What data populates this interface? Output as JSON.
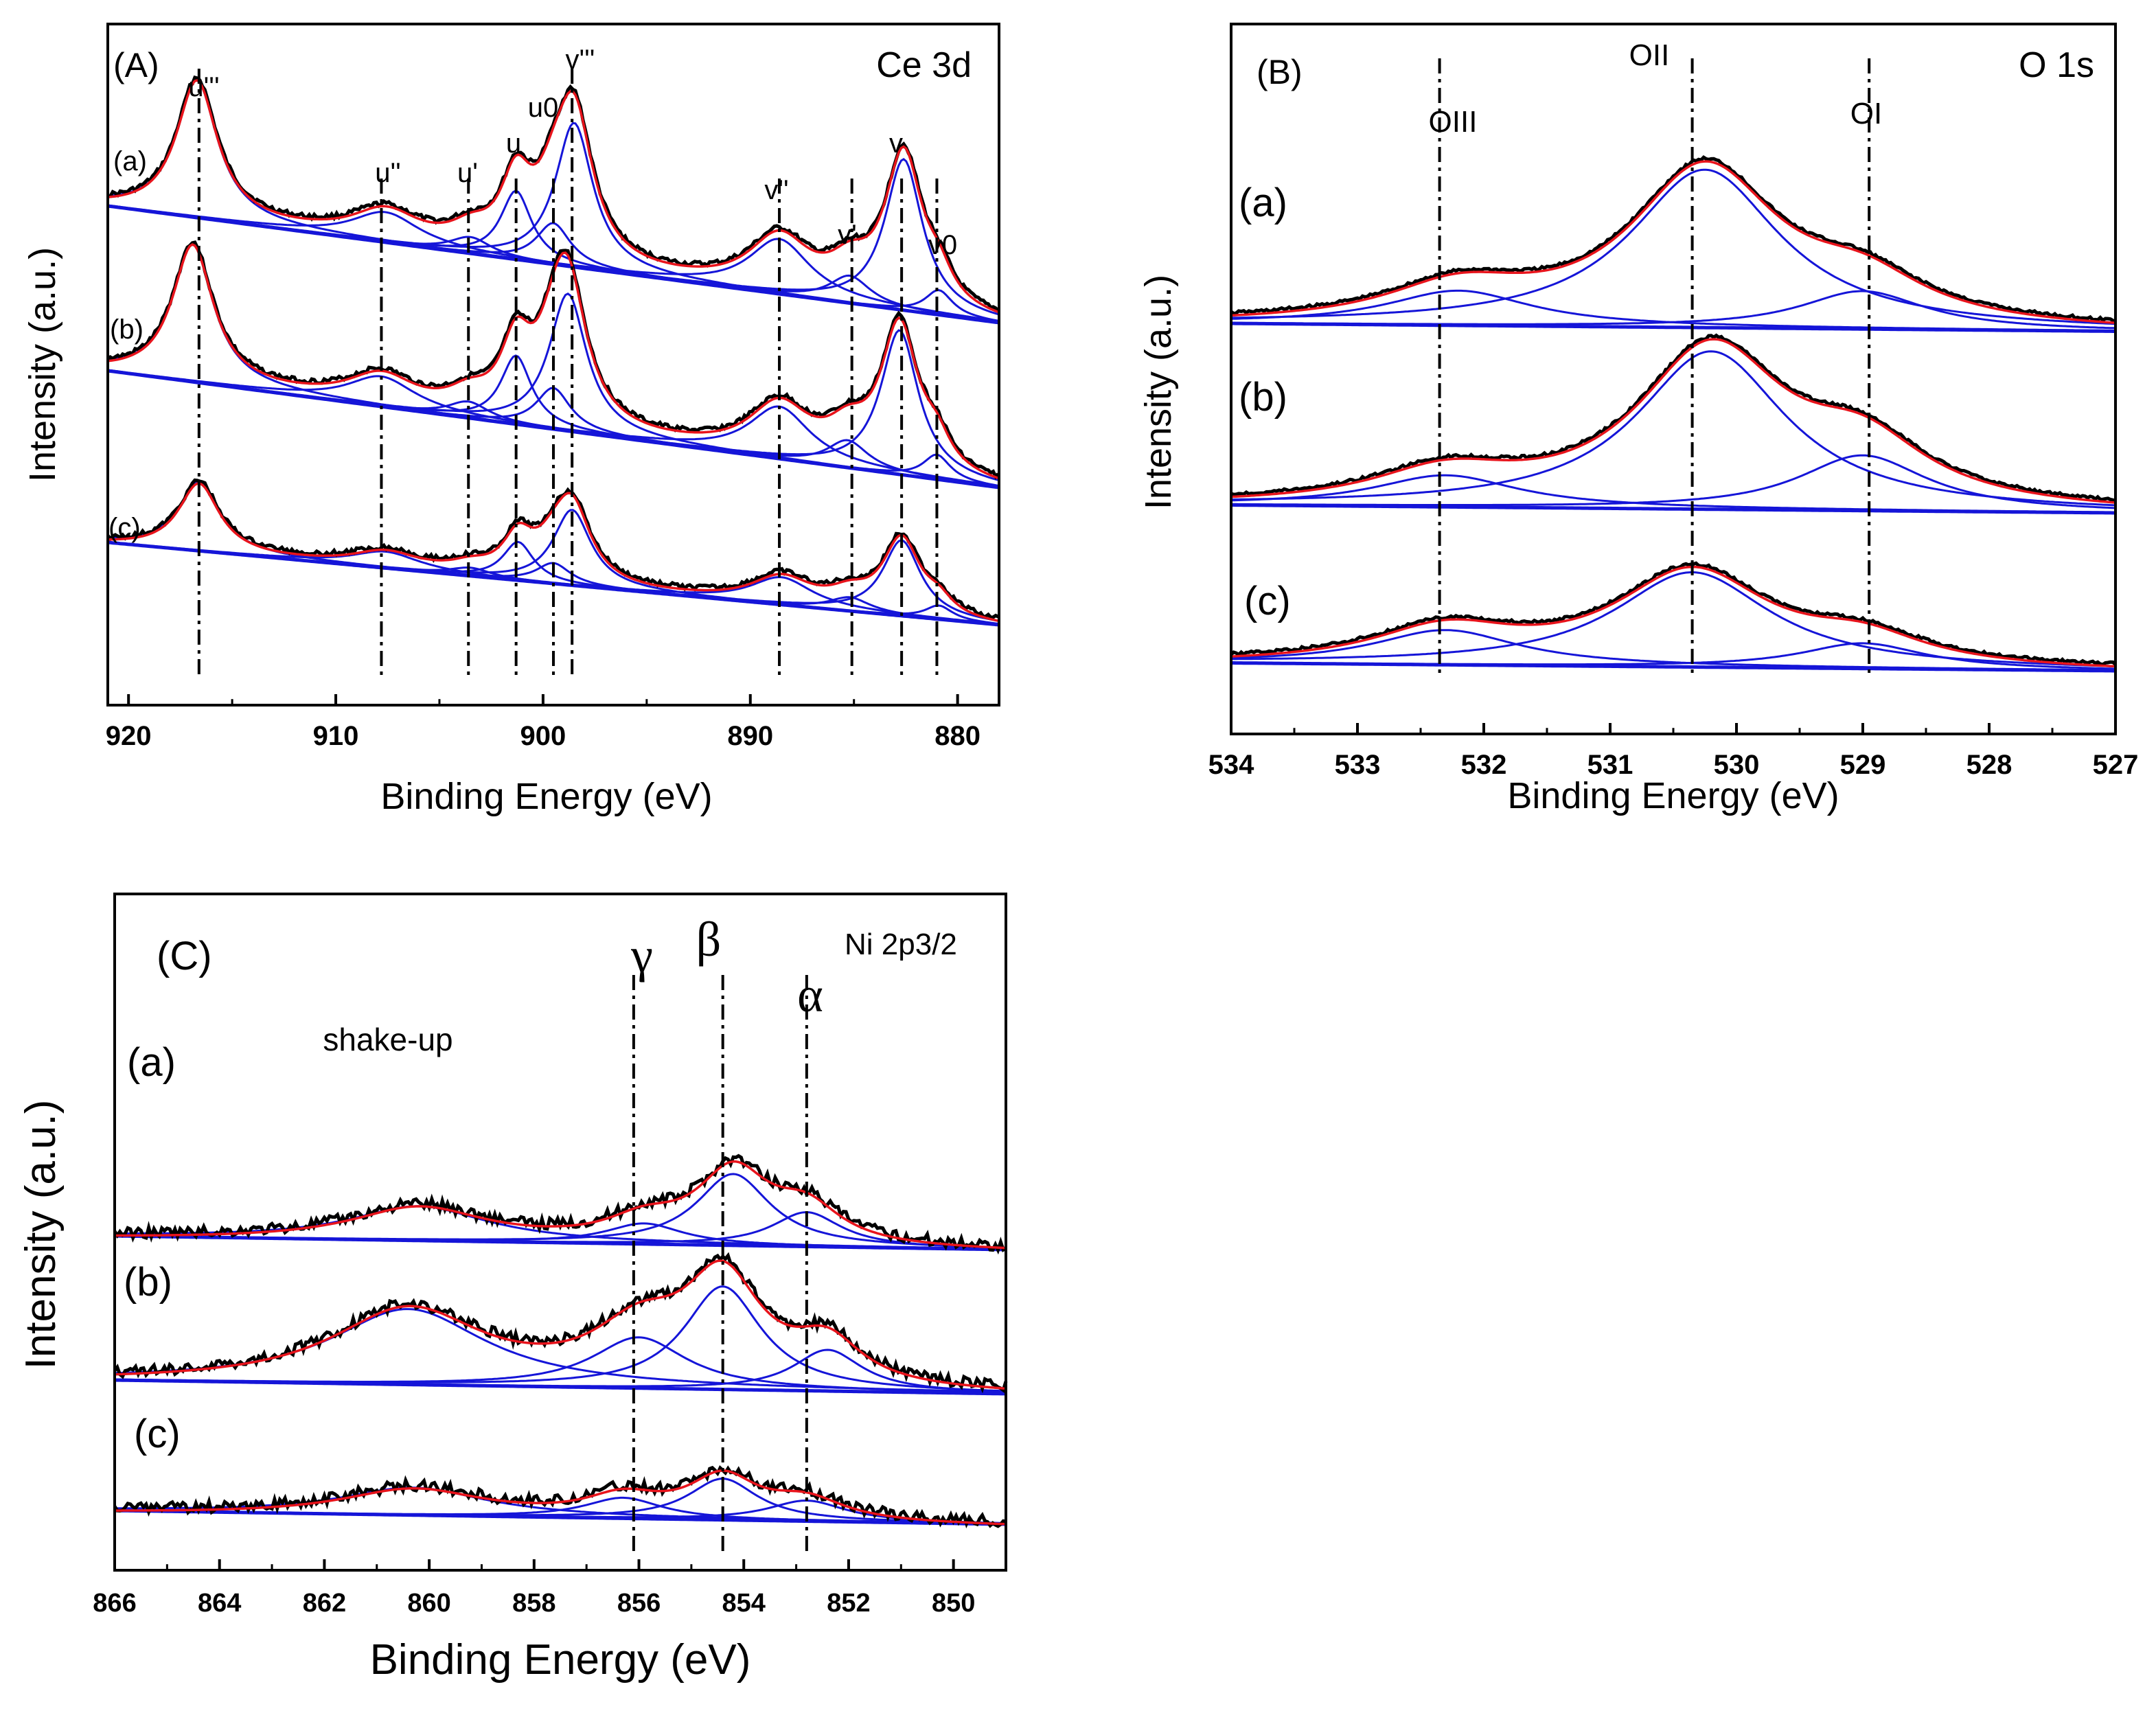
{
  "figure": {
    "panels": [
      {
        "id": "A",
        "panel_label": "(A)",
        "title": "Ce 3d",
        "xlabel": "Binding Energy (eV)",
        "ylabel": "Intensity (a.u.)",
        "x_ticks": [
          "920",
          "910",
          "900",
          "890",
          "880"
        ],
        "sample_labels": [
          "(a)",
          "(b)",
          "(c)"
        ],
        "peak_labels": [
          "u'''",
          "u''",
          "u'",
          "u",
          "u0",
          "v'''",
          "v''",
          "v'",
          "v",
          "v0"
        ]
      },
      {
        "id": "B",
        "panel_label": "(B)",
        "title": "O 1s",
        "xlabel": "Binding Energy (eV)",
        "ylabel": "Intensity (a.u.)",
        "x_ticks": [
          "534",
          "533",
          "532",
          "531",
          "530",
          "529",
          "528",
          "527"
        ],
        "sample_labels": [
          "(a)",
          "(b)",
          "(c)"
        ],
        "peak_labels": [
          "OIII",
          "OII",
          "OI"
        ]
      },
      {
        "id": "C",
        "panel_label": "(C)",
        "title": "Ni 2p3/2",
        "xlabel": "Binding Energy (eV)",
        "ylabel": "Intensity (a.u.)",
        "x_ticks": [
          "866",
          "864",
          "862",
          "860",
          "858",
          "856",
          "854",
          "852",
          "850"
        ],
        "sample_labels": [
          "(a)",
          "(b)",
          "(c)"
        ],
        "peak_labels": [
          "shake-up",
          "γ",
          "β",
          "α"
        ]
      }
    ]
  },
  "colors": {
    "raw": "#000000",
    "fit": "#e8141c",
    "components": "#1515d8",
    "guide": "#000000"
  },
  "chart_data": [
    {
      "type": "line",
      "panel": "A",
      "title": "Ce 3d",
      "xlabel": "Binding Energy (eV)",
      "ylabel": "Intensity (a.u.)",
      "xlim": [
        921,
        878
      ],
      "x_reversed": true,
      "series": [
        {
          "name": "(a)",
          "offset": 2.5,
          "bg_left": 0.85,
          "bg_right": 0.0,
          "peaks": [
            {
              "c": 916.7,
              "w": 1.2,
              "h": 1.0
            },
            {
              "c": 907.6,
              "w": 2.0,
              "h": 0.22
            },
            {
              "c": 903.5,
              "w": 1.2,
              "h": 0.12
            },
            {
              "c": 901.3,
              "w": 0.9,
              "h": 0.5
            },
            {
              "c": 899.5,
              "w": 1.0,
              "h": 0.3
            },
            {
              "c": 898.5,
              "w": 1.1,
              "h": 1.05
            },
            {
              "c": 888.6,
              "w": 1.8,
              "h": 0.4
            },
            {
              "c": 885.2,
              "w": 1.2,
              "h": 0.2
            },
            {
              "c": 882.6,
              "w": 1.1,
              "h": 1.1
            },
            {
              "c": 880.9,
              "w": 0.8,
              "h": 0.18
            }
          ]
        },
        {
          "name": "(b)",
          "offset": 1.3,
          "bg_left": 0.85,
          "bg_right": 0.0,
          "peaks": [
            {
              "c": 916.9,
              "w": 1.2,
              "h": 1.0
            },
            {
              "c": 907.8,
              "w": 2.0,
              "h": 0.22
            },
            {
              "c": 903.6,
              "w": 1.2,
              "h": 0.12
            },
            {
              "c": 901.3,
              "w": 0.9,
              "h": 0.5
            },
            {
              "c": 899.5,
              "w": 1.0,
              "h": 0.3
            },
            {
              "c": 898.8,
              "w": 1.1,
              "h": 1.0
            },
            {
              "c": 888.6,
              "w": 1.8,
              "h": 0.38
            },
            {
              "c": 885.3,
              "w": 1.2,
              "h": 0.2
            },
            {
              "c": 882.8,
              "w": 1.1,
              "h": 1.05
            },
            {
              "c": 881.0,
              "w": 0.8,
              "h": 0.18
            }
          ]
        },
        {
          "name": "(c)",
          "offset": 0.3,
          "bg_left": 0.6,
          "bg_right": 0.0,
          "peaks": [
            {
              "c": 916.6,
              "w": 1.2,
              "h": 0.5
            },
            {
              "c": 907.6,
              "w": 2.0,
              "h": 0.12
            },
            {
              "c": 903.5,
              "w": 1.2,
              "h": 0.06
            },
            {
              "c": 901.2,
              "w": 0.9,
              "h": 0.28
            },
            {
              "c": 899.5,
              "w": 1.0,
              "h": 0.15
            },
            {
              "c": 898.6,
              "w": 1.1,
              "h": 0.55
            },
            {
              "c": 888.5,
              "w": 1.8,
              "h": 0.2
            },
            {
              "c": 885.2,
              "w": 1.2,
              "h": 0.1
            },
            {
              "c": 882.7,
              "w": 1.1,
              "h": 0.55
            },
            {
              "c": 880.9,
              "w": 0.8,
              "h": 0.1
            }
          ]
        }
      ],
      "reference_lines": [
        916.6,
        907.8,
        903.6,
        901.3,
        899.5,
        898.6,
        888.6,
        885.1,
        882.7,
        881.0
      ]
    },
    {
      "type": "line",
      "panel": "B",
      "title": "O 1s",
      "xlabel": "Binding Energy (eV)",
      "ylabel": "Intensity (a.u.)",
      "xlim": [
        534,
        527
      ],
      "x_reversed": true,
      "series": [
        {
          "name": "(a)",
          "offset": 2.25,
          "bg_left": 0.05,
          "bg_right": 0.0,
          "peaks": [
            {
              "c": 532.2,
              "w": 0.7,
              "h": 0.22
            },
            {
              "c": 530.25,
              "w": 0.72,
              "h": 1.0
            },
            {
              "c": 529.0,
              "w": 0.6,
              "h": 0.24
            }
          ]
        },
        {
          "name": "(b)",
          "offset": 1.1,
          "bg_left": 0.05,
          "bg_right": 0.0,
          "peaks": [
            {
              "c": 532.3,
              "w": 0.7,
              "h": 0.2
            },
            {
              "c": 530.2,
              "w": 0.72,
              "h": 1.0
            },
            {
              "c": 529.0,
              "w": 0.62,
              "h": 0.35
            }
          ]
        },
        {
          "name": "(c)",
          "offset": 0.1,
          "bg_left": 0.05,
          "bg_right": 0.0,
          "peaks": [
            {
              "c": 532.3,
              "w": 0.7,
              "h": 0.22
            },
            {
              "c": 530.35,
              "w": 0.75,
              "h": 0.6
            },
            {
              "c": 529.0,
              "w": 0.6,
              "h": 0.16
            }
          ]
        }
      ],
      "reference_lines": [
        532.35,
        530.35,
        528.95
      ]
    },
    {
      "type": "line",
      "panel": "C",
      "title": "Ni 2p3/2",
      "xlabel": "Binding Energy (eV)",
      "ylabel": "Intensity (a.u.)",
      "xlim": [
        866,
        849
      ],
      "x_reversed": true,
      "series": [
        {
          "name": "(a)",
          "offset": 2.0,
          "bg_left": 0.05,
          "bg_right": -0.05,
          "peaks": [
            {
              "c": 860.2,
              "w": 1.6,
              "h": 0.25
            },
            {
              "c": 855.9,
              "w": 0.9,
              "h": 0.15
            },
            {
              "c": 854.2,
              "w": 0.85,
              "h": 0.52
            },
            {
              "c": 852.8,
              "w": 0.8,
              "h": 0.25
            }
          ]
        },
        {
          "name": "(b)",
          "offset": 0.95,
          "bg_left": 0.05,
          "bg_right": -0.05,
          "peaks": [
            {
              "c": 860.4,
              "w": 1.8,
              "h": 0.55
            },
            {
              "c": 856.0,
              "w": 1.1,
              "h": 0.37
            },
            {
              "c": 854.4,
              "w": 0.9,
              "h": 0.75
            },
            {
              "c": 852.4,
              "w": 0.8,
              "h": 0.3
            }
          ]
        },
        {
          "name": "(c)",
          "offset": 0.0,
          "bg_left": 0.05,
          "bg_right": -0.05,
          "peaks": [
            {
              "c": 860.3,
              "w": 1.7,
              "h": 0.2
            },
            {
              "c": 856.3,
              "w": 0.9,
              "h": 0.15
            },
            {
              "c": 854.4,
              "w": 0.8,
              "h": 0.3
            },
            {
              "c": 852.8,
              "w": 0.9,
              "h": 0.15
            }
          ]
        }
      ],
      "reference_lines": [
        856.1,
        854.4,
        852.8
      ]
    }
  ]
}
